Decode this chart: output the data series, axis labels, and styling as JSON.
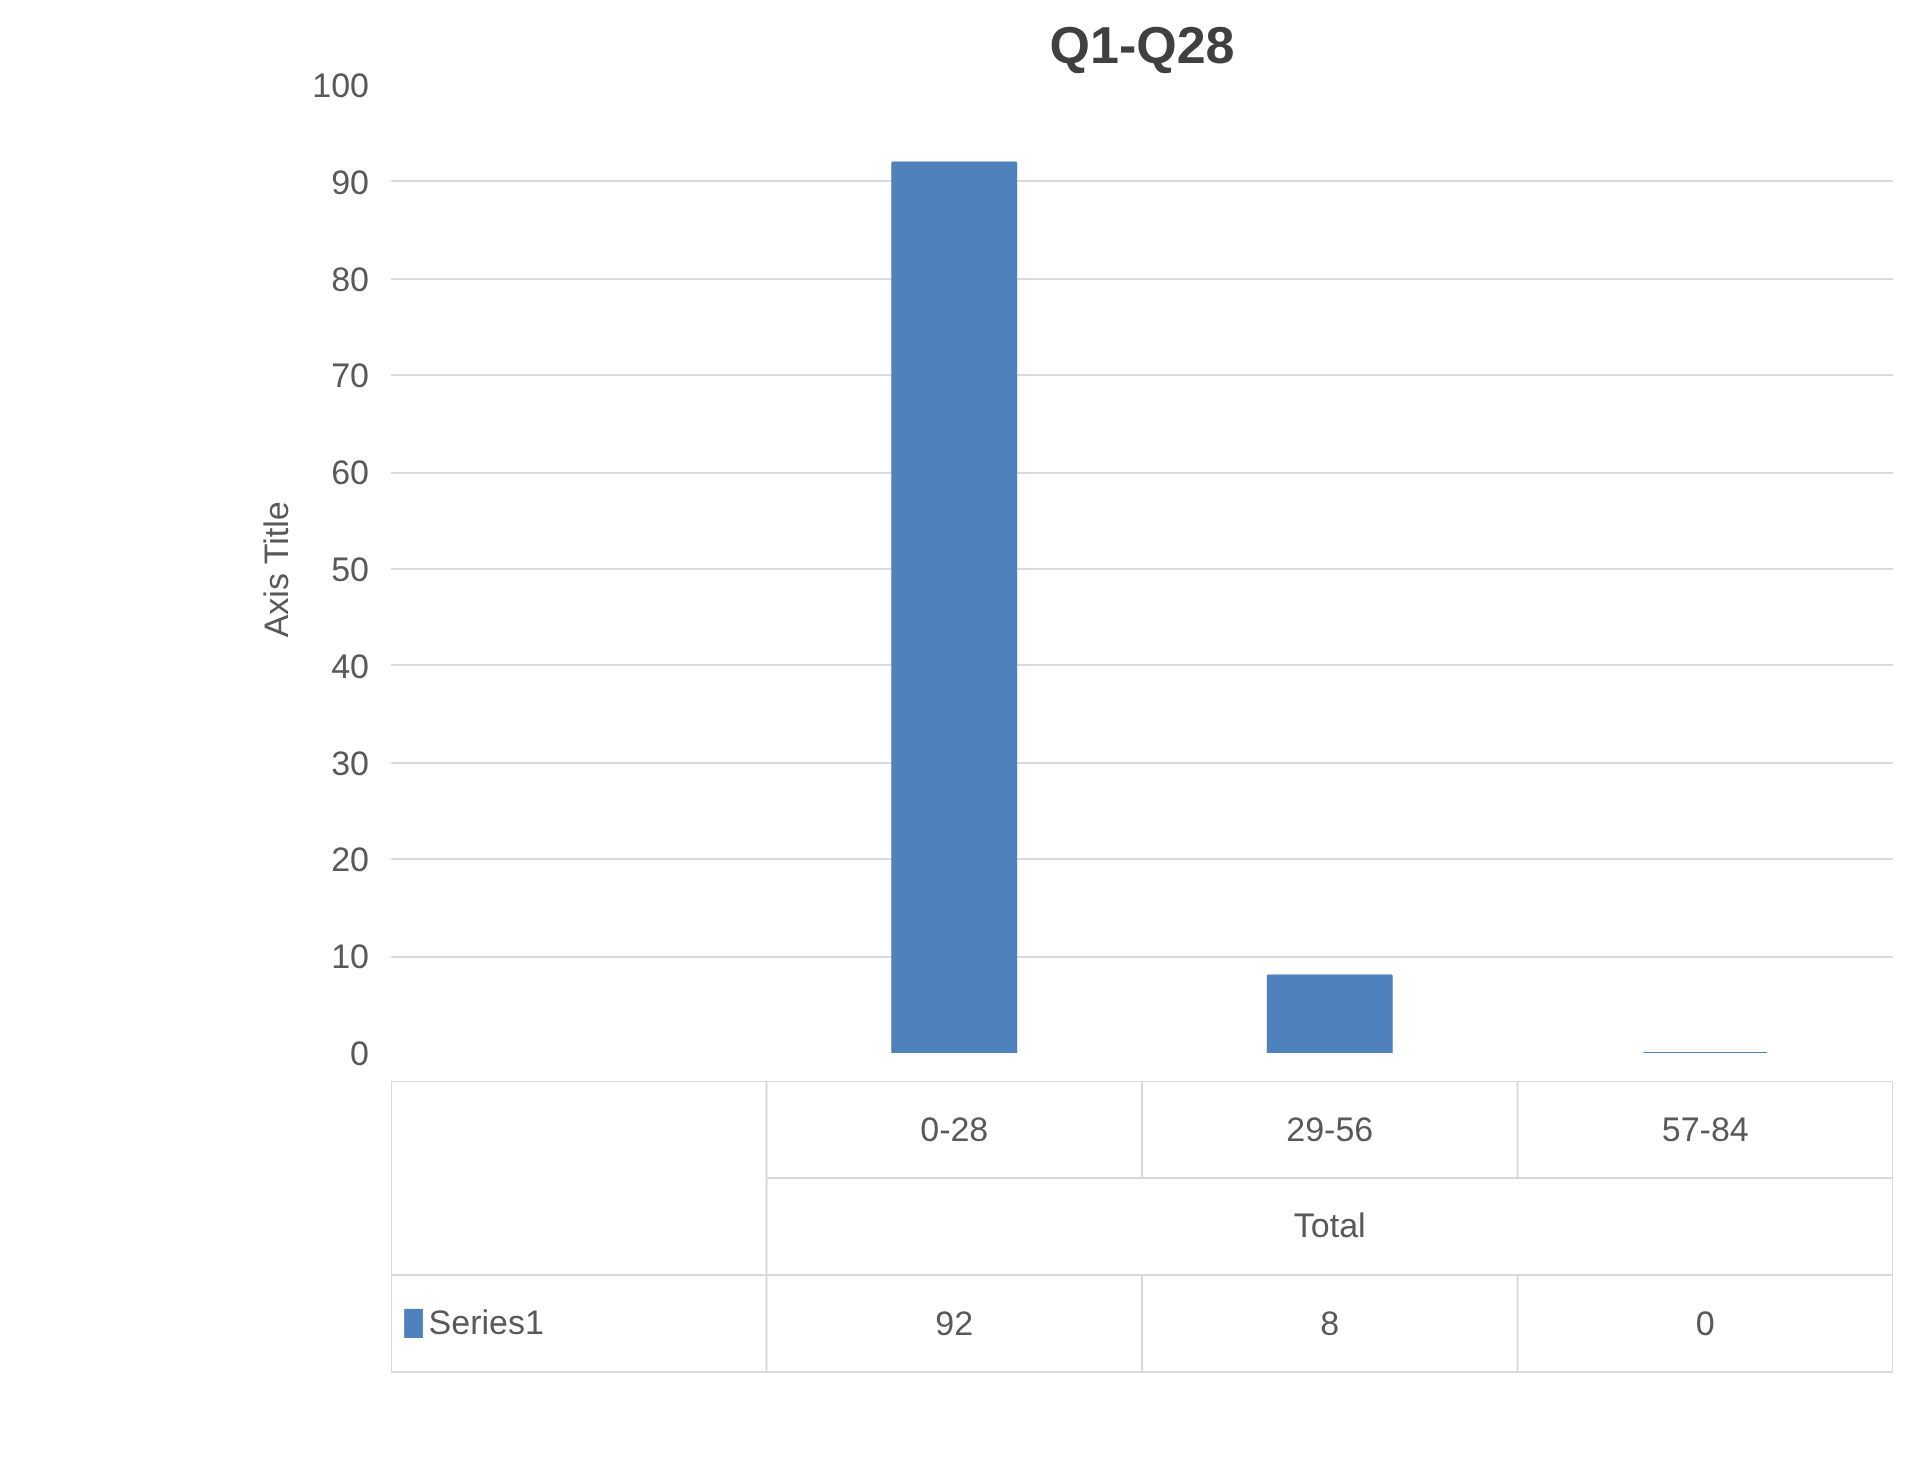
{
  "chart_data": {
    "type": "bar",
    "title": "Q1-Q28",
    "ylabel": "Axis Title",
    "xlabel": "Total",
    "categories": [
      null,
      "0-28",
      "29-56",
      "57-84"
    ],
    "series": [
      {
        "name": "Series1",
        "color": "#4f81bd",
        "values": [
          null,
          92,
          8,
          0
        ]
      }
    ],
    "ylim": [
      0,
      100
    ],
    "yticks": [
      0,
      10,
      20,
      30,
      40,
      50,
      60,
      70,
      80,
      90,
      100
    ],
    "grid": "y",
    "legend": "bottom",
    "data_labels": true
  }
}
